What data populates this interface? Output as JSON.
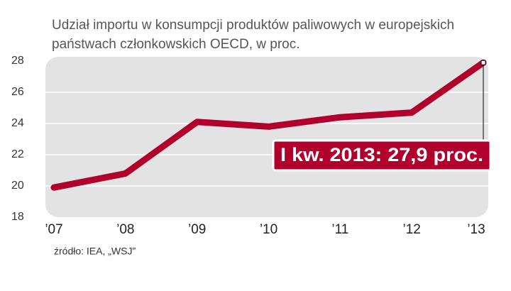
{
  "chart_data": {
    "type": "line",
    "title": "Udział importu w konsumpcji produktów paliwowych w europejskich",
    "subtitle": "państwach członkowskich OECD, w proc.",
    "categories": [
      "’07",
      "’08",
      "’09",
      "’10",
      "’11",
      "’12",
      "’13"
    ],
    "values": [
      19.9,
      20.8,
      24.1,
      23.8,
      24.4,
      24.7,
      27.9
    ],
    "color": "#b2002d",
    "ylim": [
      18,
      28
    ],
    "yticks": [
      18,
      20,
      22,
      24,
      26,
      28
    ],
    "grid": true,
    "annotation": "I kw. 2013: 27,9 proc.",
    "source": "źródło: IEA, „WSJ”"
  }
}
